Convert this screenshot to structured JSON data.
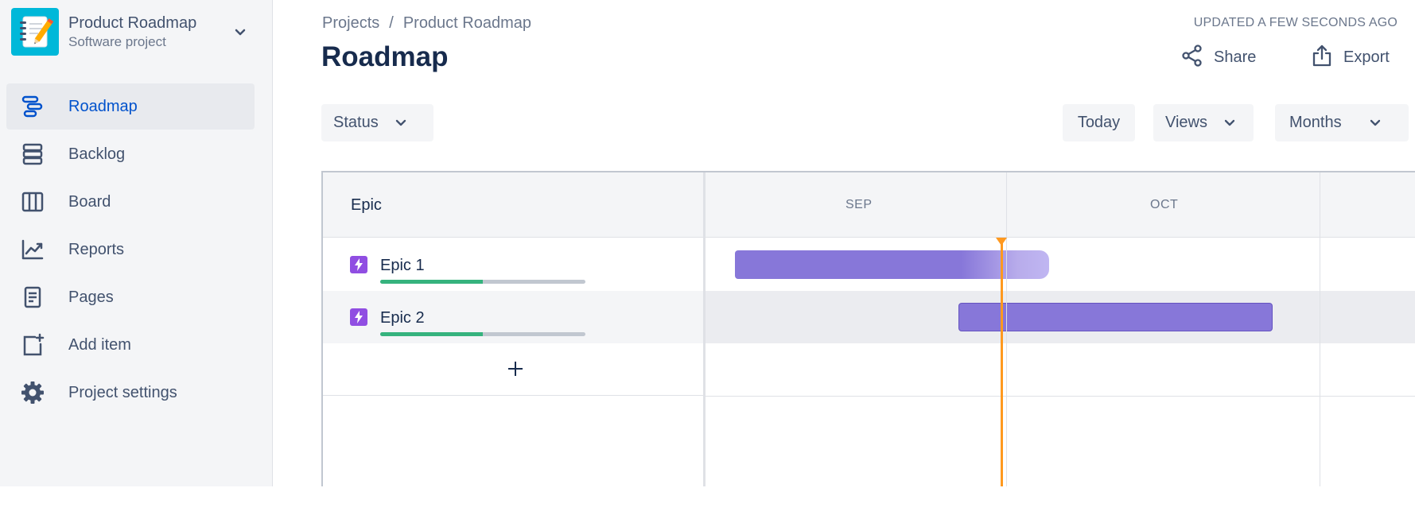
{
  "sidebar": {
    "project": {
      "name": "Product Roadmap",
      "type": "Software project",
      "avatar_icon": "notebook-pencil-icon"
    },
    "items": [
      {
        "label": "Roadmap",
        "icon": "roadmap-icon",
        "active": true
      },
      {
        "label": "Backlog",
        "icon": "backlog-icon",
        "active": false
      },
      {
        "label": "Board",
        "icon": "board-icon",
        "active": false
      },
      {
        "label": "Reports",
        "icon": "reports-icon",
        "active": false
      },
      {
        "label": "Pages",
        "icon": "pages-icon",
        "active": false
      },
      {
        "label": "Add item",
        "icon": "add-item-icon",
        "active": false
      },
      {
        "label": "Project settings",
        "icon": "gear-icon",
        "active": false
      }
    ]
  },
  "header": {
    "breadcrumb": [
      "Projects",
      "Product Roadmap"
    ],
    "breadcrumb_separator": "/",
    "title": "Roadmap",
    "updated": "UPDATED A FEW SECONDS AGO",
    "share_label": "Share",
    "export_label": "Export"
  },
  "toolbar": {
    "status_label": "Status",
    "today_label": "Today",
    "views_label": "Views",
    "months_label": "Months"
  },
  "roadmap": {
    "epic_column_label": "Epic",
    "months": [
      "SEP",
      "OCT"
    ],
    "epics": [
      {
        "name": "Epic 1",
        "progress_fraction": 0.5,
        "icon": "epic-lightning-icon"
      },
      {
        "name": "Epic 2",
        "progress_fraction": 0.5,
        "icon": "epic-lightning-icon"
      }
    ],
    "add_epic_icon": "plus-icon"
  },
  "colors": {
    "sidebar_bg": "#f4f5f7",
    "active_nav": "#0052cc",
    "epic_bar": "#8777d9",
    "epic_icon": "#904ee2",
    "progress": "#36b37e",
    "today_line": "#ff991f"
  }
}
